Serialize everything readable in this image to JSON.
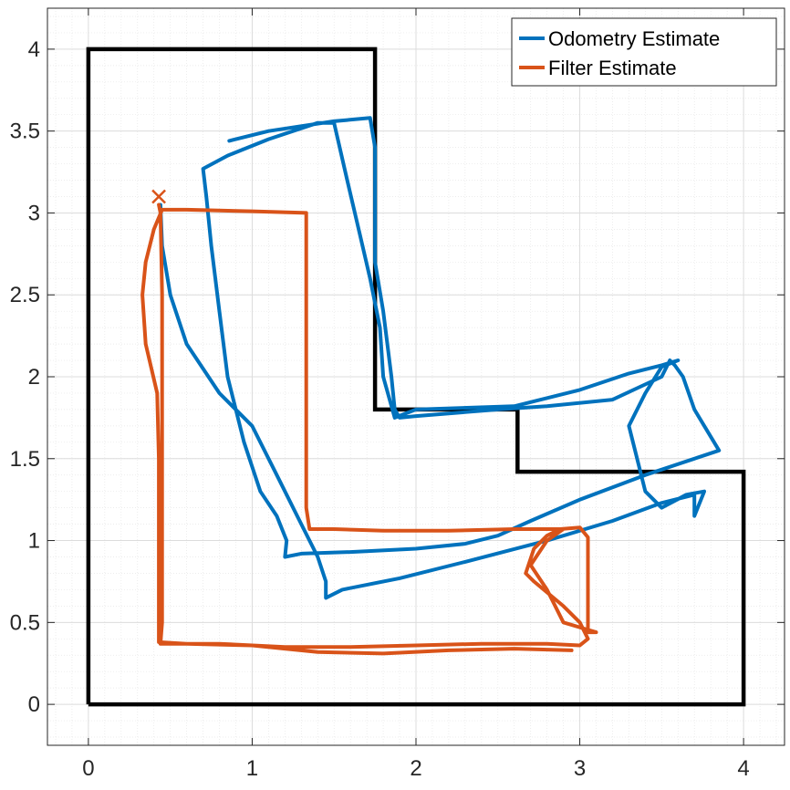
{
  "chart_data": {
    "type": "line",
    "title": "",
    "xlabel": "",
    "ylabel": "",
    "xlim": [
      -0.25,
      4.25
    ],
    "ylim": [
      -0.25,
      4.25
    ],
    "grid": true,
    "minor_grid": true,
    "x_ticks": [
      0,
      1,
      2,
      3,
      4
    ],
    "y_ticks": [
      0,
      0.5,
      1,
      1.5,
      2,
      2.5,
      3,
      3.5,
      4
    ],
    "x_tick_labels": [
      "0",
      "1",
      "2",
      "3",
      "4"
    ],
    "y_tick_labels": [
      "0",
      "0.5",
      "1",
      "1.5",
      "2",
      "2.5",
      "3",
      "3.5",
      "4"
    ],
    "legend_position": "top-right",
    "map_boundary": {
      "color": "#000000",
      "points": [
        [
          0,
          0
        ],
        [
          0,
          4
        ],
        [
          1.75,
          4
        ],
        [
          1.75,
          1.8
        ],
        [
          2.62,
          1.8
        ],
        [
          2.62,
          1.42
        ],
        [
          4,
          1.42
        ],
        [
          4,
          0
        ],
        [
          0,
          0
        ]
      ]
    },
    "series": [
      {
        "name": "Odometry Estimate",
        "color": "#0072BD",
        "points": [
          [
            0.86,
            3.44
          ],
          [
            1.1,
            3.5
          ],
          [
            1.5,
            3.56
          ],
          [
            1.72,
            3.58
          ],
          [
            1.75,
            3.4
          ],
          [
            1.75,
            3.0
          ],
          [
            1.75,
            2.7
          ],
          [
            1.8,
            2.4
          ],
          [
            1.85,
            2.0
          ],
          [
            1.87,
            1.8
          ],
          [
            1.9,
            1.75
          ],
          [
            2.0,
            1.76
          ],
          [
            2.5,
            1.8
          ],
          [
            2.8,
            1.82
          ],
          [
            3.2,
            1.86
          ],
          [
            3.5,
            2.0
          ],
          [
            3.55,
            2.1
          ],
          [
            3.58,
            2.07
          ],
          [
            3.63,
            2.0
          ],
          [
            3.7,
            1.8
          ],
          [
            3.82,
            1.6
          ],
          [
            3.85,
            1.55
          ],
          [
            3.7,
            1.5
          ],
          [
            3.4,
            1.4
          ],
          [
            3.0,
            1.25
          ],
          [
            2.7,
            1.12
          ],
          [
            2.5,
            1.03
          ],
          [
            2.3,
            0.98
          ],
          [
            2.0,
            0.95
          ],
          [
            1.6,
            0.93
          ],
          [
            1.3,
            0.92
          ],
          [
            1.2,
            0.9
          ],
          [
            1.21,
            1.0
          ],
          [
            1.15,
            1.15
          ],
          [
            1.05,
            1.3
          ],
          [
            0.95,
            1.6
          ],
          [
            0.85,
            2.0
          ],
          [
            0.8,
            2.4
          ],
          [
            0.75,
            2.8
          ],
          [
            0.72,
            3.1
          ],
          [
            0.7,
            3.27
          ],
          [
            0.85,
            3.35
          ],
          [
            1.1,
            3.45
          ],
          [
            1.4,
            3.55
          ],
          [
            1.5,
            3.55
          ],
          [
            1.58,
            3.2
          ],
          [
            1.65,
            2.9
          ],
          [
            1.72,
            2.6
          ],
          [
            1.78,
            2.3
          ],
          [
            1.8,
            2.0
          ],
          [
            1.87,
            1.75
          ],
          [
            2.0,
            1.8
          ],
          [
            2.6,
            1.82
          ],
          [
            3.0,
            1.92
          ],
          [
            3.3,
            2.02
          ],
          [
            3.5,
            2.07
          ],
          [
            3.6,
            2.1
          ],
          [
            3.5,
            2.06
          ],
          [
            3.4,
            1.9
          ],
          [
            3.3,
            1.7
          ],
          [
            3.4,
            1.3
          ],
          [
            3.5,
            1.2
          ],
          [
            3.65,
            1.28
          ],
          [
            3.76,
            1.3
          ],
          [
            3.7,
            1.15
          ],
          [
            3.7,
            1.28
          ],
          [
            3.5,
            1.23
          ],
          [
            3.2,
            1.12
          ],
          [
            2.8,
            1.0
          ],
          [
            2.3,
            0.87
          ],
          [
            1.9,
            0.77
          ],
          [
            1.55,
            0.7
          ],
          [
            1.45,
            0.65
          ],
          [
            1.45,
            0.75
          ],
          [
            1.4,
            0.9
          ],
          [
            1.3,
            1.1
          ],
          [
            1.15,
            1.4
          ],
          [
            1.0,
            1.7
          ],
          [
            0.8,
            1.9
          ],
          [
            0.6,
            2.2
          ],
          [
            0.5,
            2.5
          ],
          [
            0.45,
            2.8
          ],
          [
            0.44,
            3.05
          ]
        ]
      },
      {
        "name": "Filter Estimate",
        "color": "#D95319",
        "points": [
          [
            0.43,
            3.05
          ],
          [
            0.44,
            3.0
          ],
          [
            0.45,
            2.5
          ],
          [
            0.45,
            2.0
          ],
          [
            0.45,
            1.5
          ],
          [
            0.45,
            1.0
          ],
          [
            0.45,
            0.5
          ],
          [
            0.44,
            0.37
          ],
          [
            0.8,
            0.37
          ],
          [
            1.2,
            0.35
          ],
          [
            1.6,
            0.35
          ],
          [
            2.0,
            0.36
          ],
          [
            2.4,
            0.37
          ],
          [
            2.8,
            0.37
          ],
          [
            3.0,
            0.36
          ],
          [
            3.05,
            0.4
          ],
          [
            3.0,
            0.5
          ],
          [
            2.9,
            0.6
          ],
          [
            2.72,
            0.75
          ],
          [
            2.67,
            0.8
          ],
          [
            2.72,
            0.95
          ],
          [
            2.8,
            1.03
          ],
          [
            2.88,
            1.07
          ],
          [
            3.0,
            1.08
          ],
          [
            3.05,
            1.02
          ],
          [
            3.05,
            0.8
          ],
          [
            3.05,
            0.5
          ],
          [
            3.05,
            0.44
          ],
          [
            3.1,
            0.44
          ],
          [
            2.9,
            0.5
          ],
          [
            2.8,
            0.7
          ],
          [
            2.7,
            0.85
          ],
          [
            2.8,
            1.0
          ],
          [
            2.9,
            1.07
          ],
          [
            2.6,
            1.07
          ],
          [
            2.2,
            1.06
          ],
          [
            1.8,
            1.06
          ],
          [
            1.5,
            1.07
          ],
          [
            1.35,
            1.07
          ],
          [
            1.33,
            1.2
          ],
          [
            1.33,
            1.6
          ],
          [
            1.33,
            2.0
          ],
          [
            1.33,
            2.5
          ],
          [
            1.33,
            3.0
          ],
          [
            1.0,
            3.01
          ],
          [
            0.6,
            3.02
          ],
          [
            0.45,
            3.02
          ],
          [
            0.4,
            2.9
          ],
          [
            0.35,
            2.7
          ],
          [
            0.33,
            2.5
          ],
          [
            0.35,
            2.2
          ],
          [
            0.42,
            1.9
          ],
          [
            0.43,
            1.5
          ],
          [
            0.43,
            1.0
          ],
          [
            0.43,
            0.6
          ],
          [
            0.43,
            0.38
          ],
          [
            0.6,
            0.37
          ],
          [
            1.0,
            0.36
          ],
          [
            1.4,
            0.32
          ],
          [
            1.8,
            0.31
          ],
          [
            2.2,
            0.33
          ],
          [
            2.6,
            0.34
          ],
          [
            2.95,
            0.33
          ]
        ],
        "start_marker": [
          0.43,
          3.1
        ]
      }
    ]
  }
}
